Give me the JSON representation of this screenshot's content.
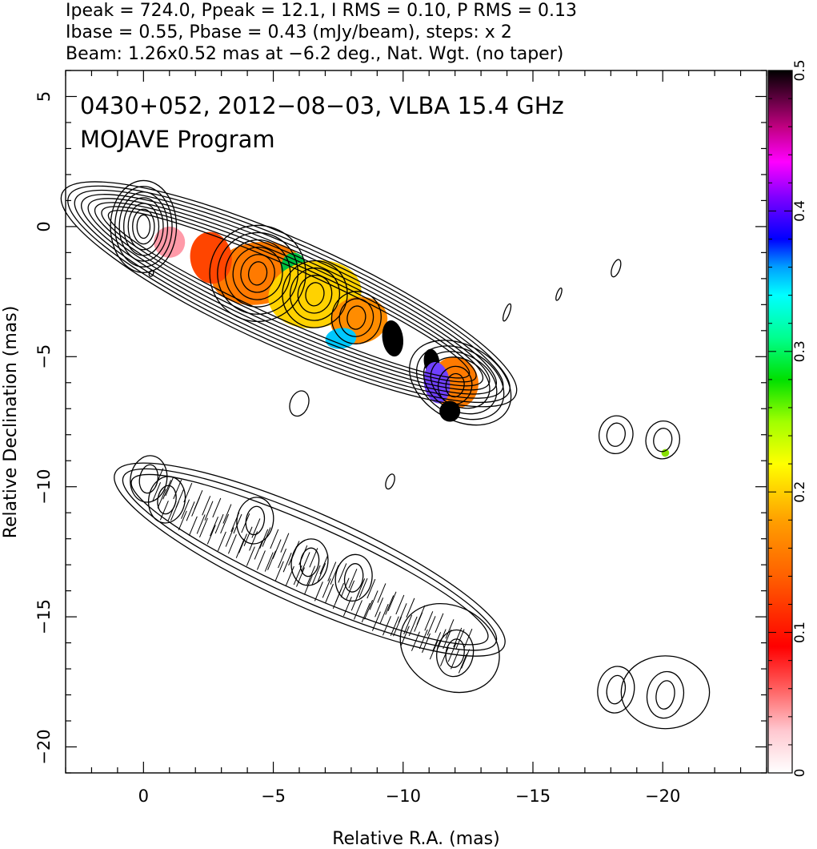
{
  "header_lines": [
    "Ipeak = 724.0, Ppeak = 12.1, I RMS = 0.10, P RMS = 0.13",
    "Ibase = 0.55, Pbase = 0.43 (mJy/beam), steps: x 2",
    "Beam: 1.26x0.52 mas at −6.2 deg., Nat. Wgt. (no taper)"
  ],
  "chart_data": {
    "type": "contour",
    "title": "0430+052, 2012−08−03, VLBA 15.4 GHz",
    "subtitle": "MOJAVE Program",
    "xlabel": "Relative R.A. (mas)",
    "ylabel": "Relative Declination (mas)",
    "xlim": [
      3,
      -24
    ],
    "ylim": [
      -21,
      6
    ],
    "x_ticks": [
      0,
      -5,
      -10,
      -15,
      -20
    ],
    "x_tick_labels": [
      "0",
      "−5",
      "−10",
      "−15",
      "−20"
    ],
    "y_ticks": [
      5,
      0,
      -5,
      -10,
      -15,
      -20
    ],
    "y_tick_labels": [
      "5",
      "0",
      "−5",
      "−10",
      "−15",
      "−20"
    ],
    "colorbar": {
      "range": [
        0,
        0.5
      ],
      "ticks": [
        0,
        0.1,
        0.2,
        0.3,
        0.4,
        0.5
      ],
      "tick_labels": [
        "0",
        "0.1",
        "0.2",
        "0.3",
        "0.4",
        "0.5"
      ]
    },
    "header": {
      "Ipeak": 724.0,
      "Ppeak": 12.1,
      "I_RMS": 0.1,
      "P_RMS": 0.13,
      "Ibase": 0.55,
      "Pbase": 0.43,
      "step_factor": 2,
      "beam_major_mas": 1.26,
      "beam_minor_mas": 0.52,
      "beam_pa_deg": -6.2
    },
    "upper_map": {
      "core": [
        0,
        0
      ],
      "jet_components": [
        {
          "x": -4.4,
          "y": -1.8,
          "levels": 6
        },
        {
          "x": -6.6,
          "y": -2.6,
          "levels": 4
        },
        {
          "x": -8.2,
          "y": -3.5,
          "levels": 3
        },
        {
          "x": -12.0,
          "y": -6.1,
          "levels": 2
        },
        {
          "x": -20.0,
          "y": -8.2,
          "levels": 2
        },
        {
          "x": -18.2,
          "y": -8.0,
          "levels": 2
        }
      ],
      "polarization_patches": [
        {
          "x": -4.4,
          "y": -1.8,
          "rx": 1.8,
          "ry": 1.2,
          "color": "#ff7a00"
        },
        {
          "x": -2.6,
          "y": -1.2,
          "rx": 0.8,
          "ry": 1.0,
          "color": "#ff4500"
        },
        {
          "x": -1.0,
          "y": -0.6,
          "rx": 0.6,
          "ry": 0.6,
          "color": "#ff9aa8"
        },
        {
          "x": -5.8,
          "y": -1.6,
          "rx": 0.5,
          "ry": 0.6,
          "color": "#00c040"
        },
        {
          "x": -6.6,
          "y": -2.6,
          "rx": 1.8,
          "ry": 1.3,
          "color": "#ffd200"
        },
        {
          "x": -8.3,
          "y": -3.6,
          "rx": 1.1,
          "ry": 0.9,
          "color": "#ff8c00"
        },
        {
          "x": -7.6,
          "y": -4.3,
          "rx": 0.6,
          "ry": 0.4,
          "color": "#00c8ff"
        },
        {
          "x": -9.6,
          "y": -4.3,
          "rx": 0.4,
          "ry": 0.7,
          "color": "#000000"
        },
        {
          "x": -11.1,
          "y": -5.2,
          "rx": 0.3,
          "ry": 0.5,
          "color": "#000000"
        },
        {
          "x": -12.0,
          "y": -6.0,
          "rx": 0.9,
          "ry": 1.0,
          "color": "#ff7a00"
        },
        {
          "x": -11.3,
          "y": -6.0,
          "rx": 0.5,
          "ry": 0.8,
          "color": "#7040ff"
        },
        {
          "x": -11.8,
          "y": -7.1,
          "rx": 0.4,
          "ry": 0.4,
          "color": "#000000"
        },
        {
          "x": -20.1,
          "y": -8.7,
          "rx": 0.15,
          "ry": 0.15,
          "color": "#88e000"
        }
      ]
    },
    "lower_map": {
      "components": [
        {
          "x": -0.2,
          "y": -9.7
        },
        {
          "x": -0.9,
          "y": -10.5
        },
        {
          "x": -4.3,
          "y": -11.3
        },
        {
          "x": -6.4,
          "y": -12.9
        },
        {
          "x": -8.1,
          "y": -13.5
        },
        {
          "x": -12.0,
          "y": -16.4
        },
        {
          "x": -20.1,
          "y": -18.0
        },
        {
          "x": -18.2,
          "y": -17.8
        }
      ]
    }
  }
}
